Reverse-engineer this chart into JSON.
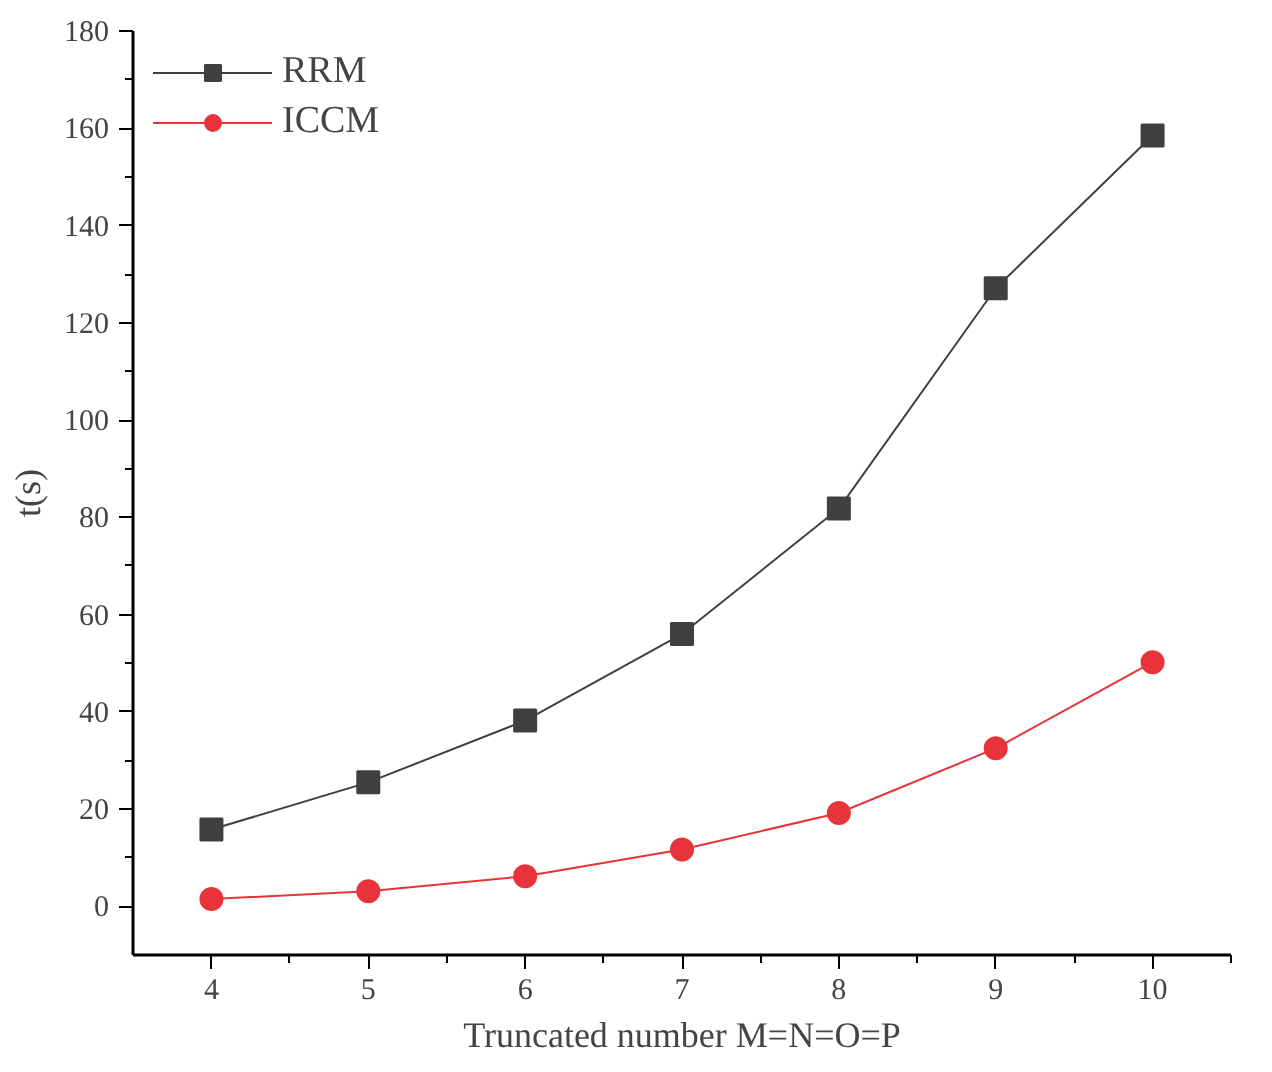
{
  "chart_data": {
    "type": "line",
    "xlabel": "Truncated number M=N=O=P",
    "ylabel": "t(s)",
    "x": [
      4,
      5,
      6,
      7,
      8,
      9,
      10
    ],
    "series": [
      {
        "name": "RRM",
        "color": "#404040",
        "values": [
          15.8,
          25.5,
          38.2,
          56,
          81.8,
          127.1,
          158.5
        ],
        "marker": "square"
      },
      {
        "name": "ICCM",
        "color": "#e8333a",
        "values": [
          1.5,
          3.1,
          6.2,
          11.7,
          19.2,
          32.5,
          50.2
        ],
        "marker": "circle"
      }
    ],
    "xlim": [
      3.5,
      10.5
    ],
    "ylim": [
      -10,
      180
    ],
    "xticks": [
      4,
      5,
      6,
      7,
      8,
      9,
      10
    ],
    "yticks": [
      0,
      20,
      40,
      60,
      80,
      100,
      120,
      140,
      160,
      180
    ],
    "grid": false,
    "legend": "top left",
    "line_style": "solid"
  }
}
